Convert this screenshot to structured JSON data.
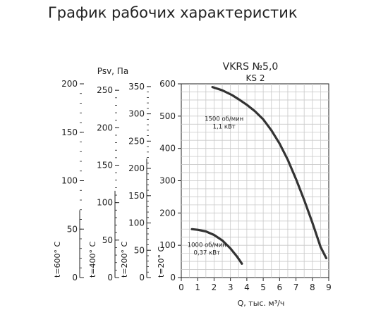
{
  "page": {
    "title": "График рабочих характеристик"
  },
  "chart_data": {
    "type": "line",
    "title": "VKRS №5,0",
    "subtitle": "KS 2",
    "xlabel": "Q, тыс. м³/ч",
    "ylabel": "Psv, Па",
    "xlim": [
      0,
      9
    ],
    "ylim": [
      0,
      600
    ],
    "x_ticks": [
      0,
      1,
      2,
      3,
      4,
      5,
      6,
      7,
      8,
      9
    ],
    "y_ticks": [
      0,
      100,
      200,
      300,
      400,
      500,
      600
    ],
    "grid": true,
    "temperature_axes": [
      {
        "label": "t=600° C",
        "max": 200,
        "ticks": [
          0,
          50,
          100,
          150,
          200
        ]
      },
      {
        "label": "t=400° C",
        "max": 260,
        "ticks": [
          0,
          50,
          100,
          150,
          200,
          250
        ]
      },
      {
        "label": "t=200° C",
        "max": 360,
        "ticks": [
          0,
          50,
          100,
          150,
          200,
          250,
          300,
          350
        ]
      },
      {
        "label": "t=20° C",
        "max": 600,
        "ticks": []
      }
    ],
    "series": [
      {
        "label_line1": "1500 об/мин",
        "label_line2": "1,1 кВт",
        "x": [
          1.9,
          2.5,
          3.1,
          3.6,
          4.0,
          4.5,
          5.0,
          5.5,
          6.0,
          6.5,
          7.0,
          7.5,
          8.0,
          8.5,
          8.85
        ],
        "y": [
          590,
          580,
          565,
          549,
          535,
          515,
          490,
          456,
          415,
          365,
          305,
          240,
          170,
          95,
          60
        ]
      },
      {
        "label_line1": "1000 об/мин",
        "label_line2": "0,37 кВт",
        "x": [
          0.65,
          1.0,
          1.5,
          2.0,
          2.5,
          3.0,
          3.4,
          3.7
        ],
        "y": [
          150,
          148,
          143,
          132,
          115,
          90,
          65,
          43
        ]
      }
    ]
  }
}
